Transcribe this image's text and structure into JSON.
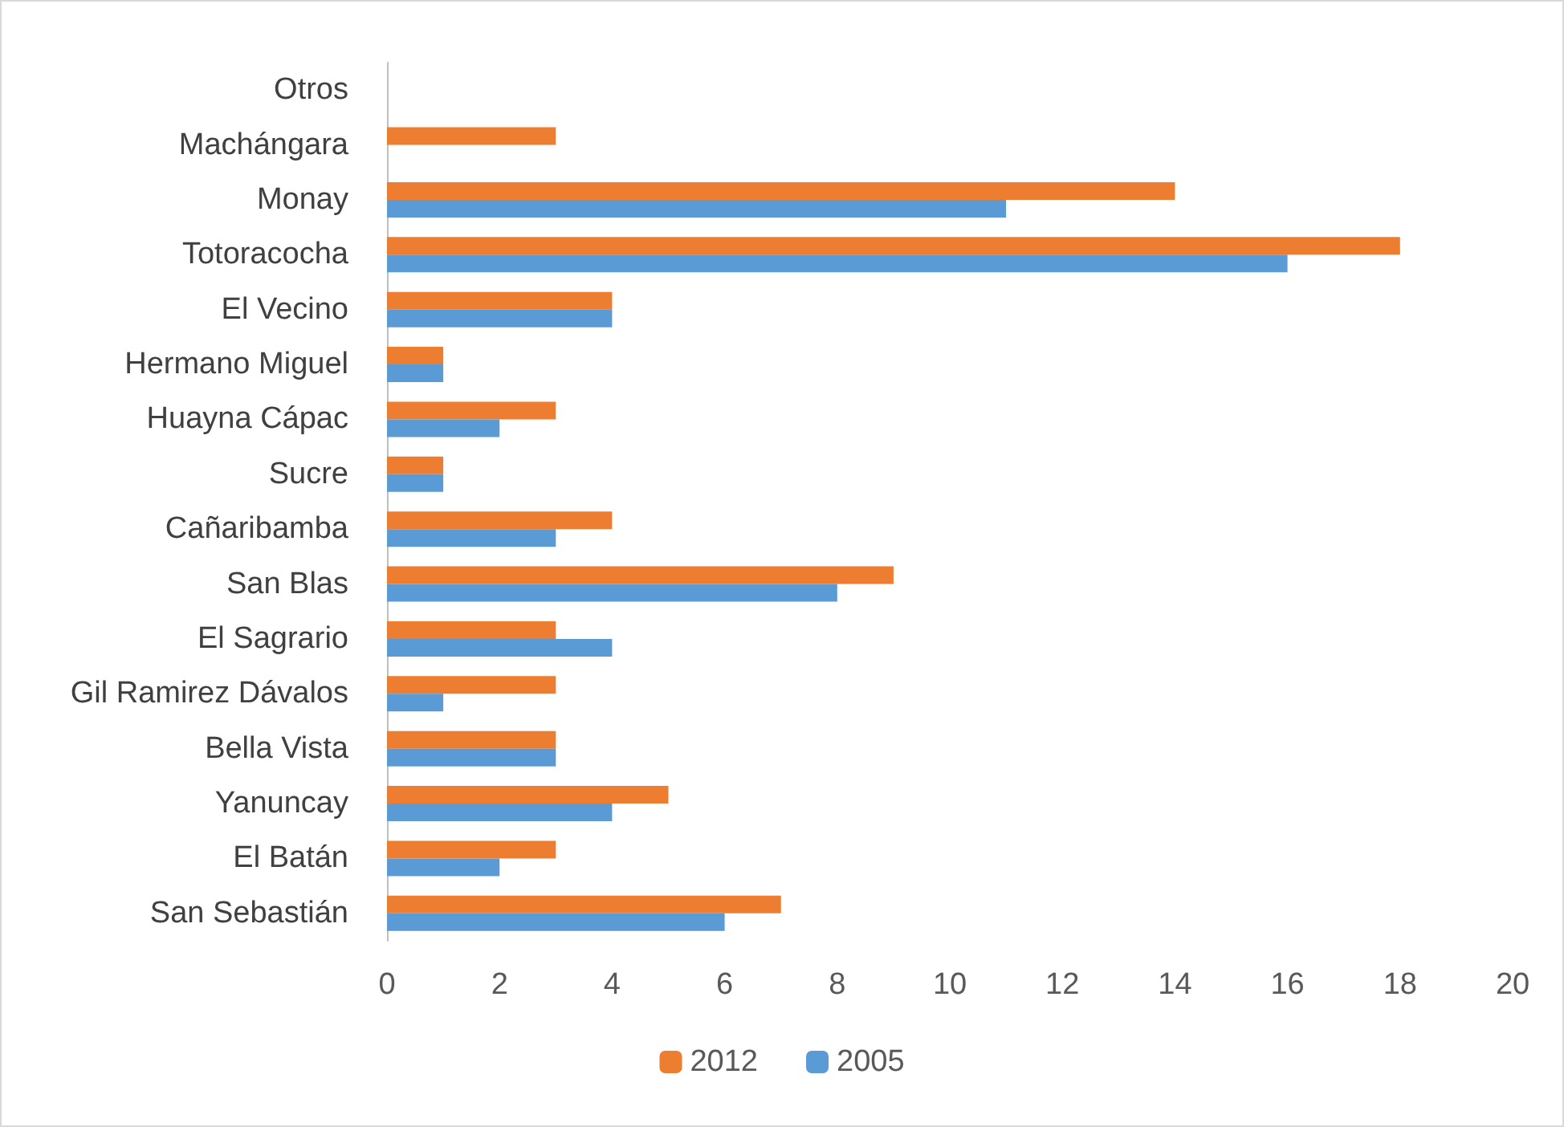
{
  "chart_data": {
    "type": "bar",
    "orientation": "horizontal",
    "categories": [
      "Otros",
      "Machángara",
      "Monay",
      "Totoracocha",
      "El Vecino",
      "Hermano Miguel",
      "Huayna Cápac",
      "Sucre",
      "Cañaribamba",
      "San Blas",
      "El Sagrario",
      "Gil Ramirez Dávalos",
      "Bella Vista",
      "Yanuncay",
      "El Batán",
      "San Sebastián"
    ],
    "series": [
      {
        "name": "2012",
        "color": "#ed7d31",
        "values": [
          0,
          3,
          14,
          18,
          4,
          1,
          3,
          1,
          4,
          9,
          3,
          3,
          3,
          5,
          3,
          7
        ]
      },
      {
        "name": "2005",
        "color": "#5b9bd5",
        "values": [
          0,
          0,
          11,
          16,
          4,
          1,
          2,
          1,
          3,
          8,
          4,
          1,
          3,
          4,
          2,
          6
        ]
      }
    ],
    "xlim": [
      0,
      20
    ],
    "xticks": [
      0,
      2,
      4,
      6,
      8,
      10,
      12,
      14,
      16,
      18,
      20
    ],
    "grid": false,
    "legend": "bottom"
  }
}
